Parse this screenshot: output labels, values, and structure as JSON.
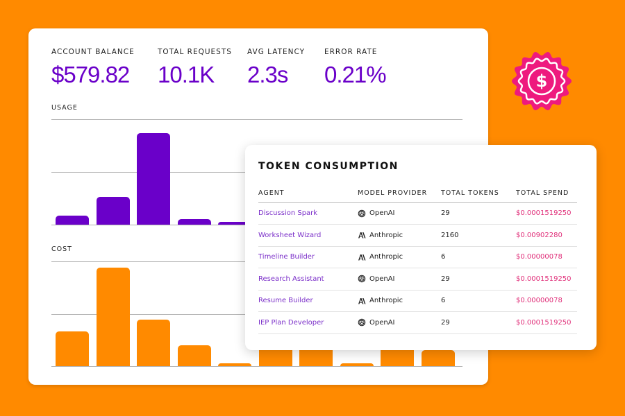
{
  "colors": {
    "background": "#ff8a00",
    "accent_purple": "#6a00c9",
    "usage_bar": "#6a00c9",
    "cost_bar": "#ff8a00",
    "spend_text": "#e0307a",
    "badge": "#ee1a7e"
  },
  "stats": [
    {
      "label": "ACCOUNT BALANCE",
      "value": "$579.82"
    },
    {
      "label": "TOTAL REQUESTS",
      "value": "10.1K"
    },
    {
      "label": "AVG LATENCY",
      "value": "2.3s"
    },
    {
      "label": "ERROR RATE",
      "value": "0.21%"
    }
  ],
  "usage": {
    "label": "USAGE",
    "relative_values": [
      10,
      30,
      100,
      6,
      3
    ]
  },
  "cost": {
    "label": "COST",
    "relative_values": [
      35,
      100,
      47,
      21,
      3,
      25,
      25,
      3,
      25,
      16
    ]
  },
  "token_consumption": {
    "title": "TOKEN CONSUMPTION",
    "columns": [
      "AGENT",
      "MODEL PROVIDER",
      "TOTAL TOKENS",
      "TOTAL SPEND"
    ],
    "rows": [
      {
        "agent": "Discussion Spark",
        "provider": "OpenAI",
        "provider_icon": "openai-logo-icon",
        "tokens": "29",
        "spend": "$0.0001519250"
      },
      {
        "agent": "Worksheet Wizard",
        "provider": "Anthropic",
        "provider_icon": "anthropic-logo-icon",
        "tokens": "2160",
        "spend": "$0.00902280"
      },
      {
        "agent": "Timeline Builder",
        "provider": "Anthropic",
        "provider_icon": "anthropic-logo-icon",
        "tokens": "6",
        "spend": "$0.00000078"
      },
      {
        "agent": "Research Assistant",
        "provider": "OpenAI",
        "provider_icon": "openai-logo-icon",
        "tokens": "29",
        "spend": "$0.0001519250"
      },
      {
        "agent": "Resume Builder",
        "provider": "Anthropic",
        "provider_icon": "anthropic-logo-icon",
        "tokens": "6",
        "spend": "$0.00000078"
      },
      {
        "agent": "IEP Plan Developer",
        "provider": "OpenAI",
        "provider_icon": "openai-logo-icon",
        "tokens": "29",
        "spend": "$0.0001519250"
      }
    ]
  },
  "badge_icon": "dollar-badge-icon"
}
